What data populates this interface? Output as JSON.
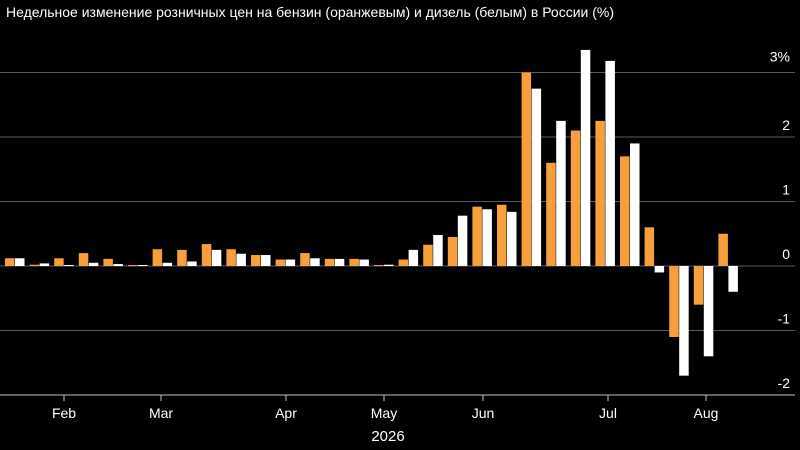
{
  "chart_data": {
    "type": "bar",
    "title": "Недельное изменение розничных цен на бензин (оранжевым) и дизель (белым) в России (%)",
    "x_axis": {
      "tick_labels": [
        "Feb",
        "Mar",
        "Apr",
        "May",
        "Jun",
        "Jul",
        "Aug"
      ],
      "year_label": "2026"
    },
    "y_axis": {
      "tick_labels": [
        "3%",
        "2",
        "1",
        "0",
        "-1",
        "-2"
      ],
      "tick_values": [
        3,
        2,
        1,
        0,
        -1,
        -2
      ],
      "ylim": [
        -2.2,
        3.3
      ],
      "position": "right"
    },
    "grid": true,
    "series": [
      {
        "name": "бензин",
        "color": "#f5a03a",
        "values": [
          0.12,
          0.02,
          0.12,
          0.2,
          0.11,
          0.0,
          0.26,
          0.25,
          0.34,
          0.26,
          0.17,
          0.1,
          0.2,
          0.11,
          0.11,
          0.0,
          0.1,
          0.33,
          0.45,
          0.92,
          0.95,
          3.0,
          1.6,
          2.1,
          2.25,
          1.7,
          0.6,
          -1.1,
          -0.6,
          0.5
        ]
      },
      {
        "name": "дизель",
        "color": "#ffffff",
        "values": [
          0.12,
          0.04,
          0.0,
          0.05,
          0.03,
          0.0,
          0.05,
          0.07,
          0.25,
          0.19,
          0.17,
          0.1,
          0.12,
          0.11,
          0.1,
          0.02,
          0.25,
          0.48,
          0.78,
          0.88,
          0.84,
          2.75,
          2.25,
          3.35,
          3.18,
          1.9,
          -0.1,
          -1.7,
          -1.4,
          -0.4
        ]
      }
    ]
  }
}
